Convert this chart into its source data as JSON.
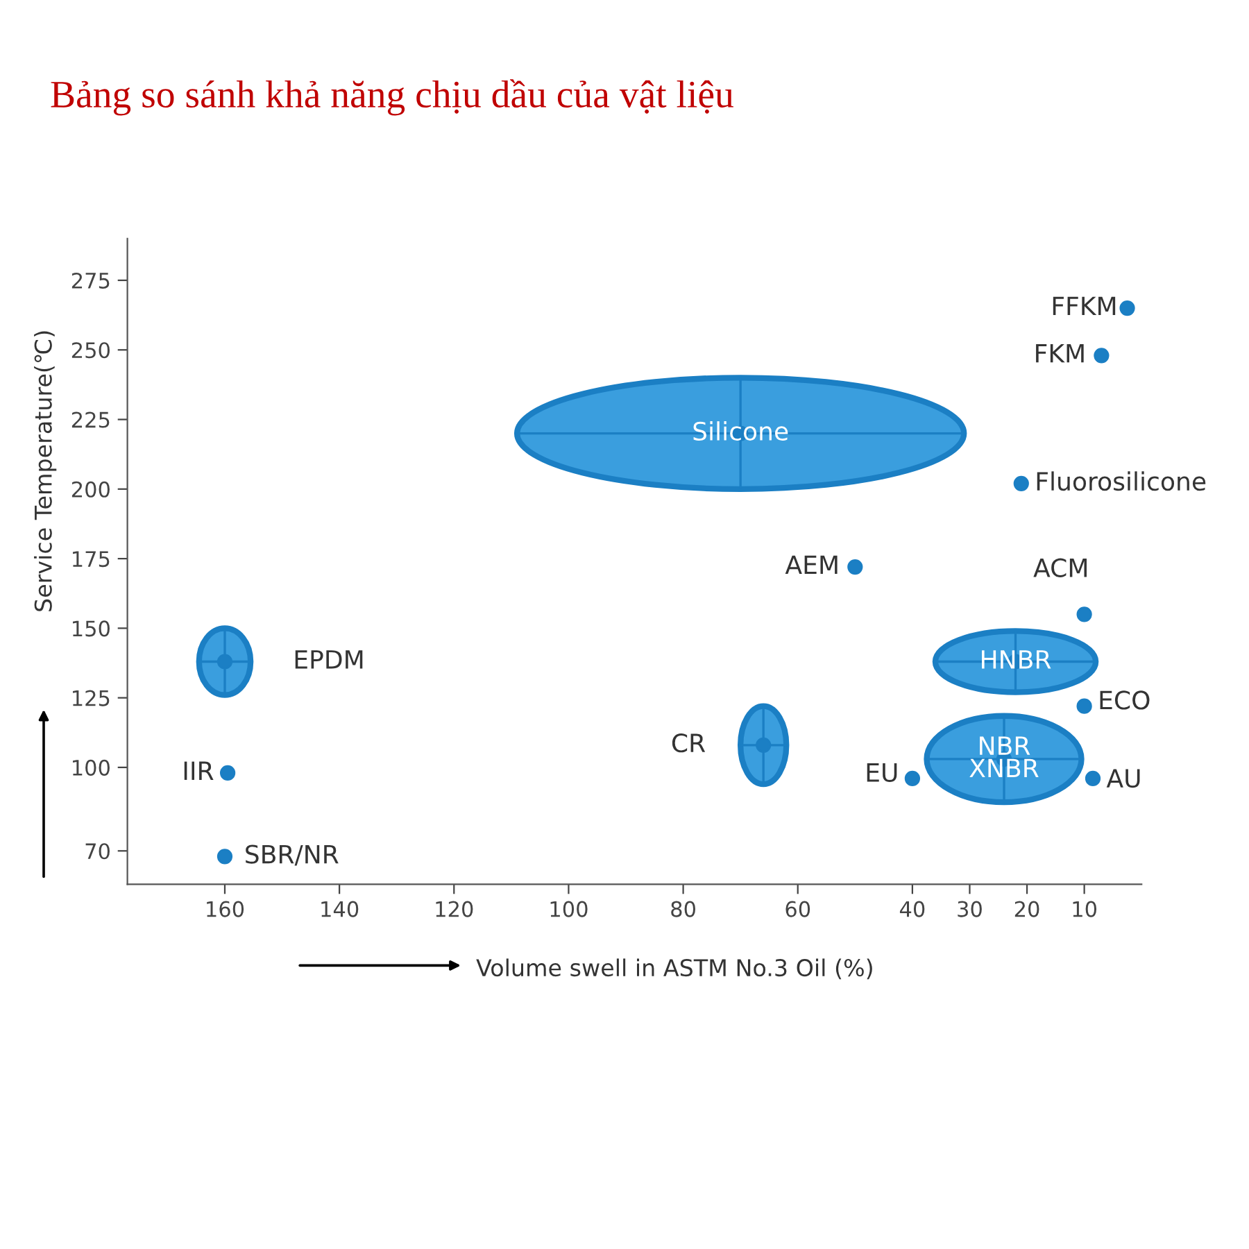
{
  "chart_data": {
    "type": "scatter",
    "title": "Bảng so sánh khả năng chịu dầu của vật liệu",
    "xlabel": "Volume swell in ASTM No.3 Oil (%)",
    "ylabel": "Service Temperature(℃)",
    "xlim": [
      177,
      0
    ],
    "ylim": [
      58,
      290
    ],
    "xticks": [
      160,
      140,
      120,
      100,
      80,
      60,
      40,
      30,
      20,
      10
    ],
    "yticks": [
      275,
      250,
      225,
      200,
      175,
      150,
      125,
      100,
      70
    ],
    "grid": false,
    "legend": false,
    "marker": "circle",
    "series": [
      {
        "name": "FFKM",
        "color": "#1b7fc4",
        "x": [
          2.5
        ],
        "values": [
          265
        ]
      },
      {
        "name": "FKM",
        "color": "#1b7fc4",
        "x": [
          7
        ],
        "values": [
          248
        ]
      },
      {
        "name": "Fluorosilicone",
        "color": "#1b7fc4",
        "x": [
          21
        ],
        "values": [
          202
        ]
      },
      {
        "name": "AEM",
        "color": "#1b7fc4",
        "x": [
          50
        ],
        "values": [
          172
        ]
      },
      {
        "name": "ACM",
        "color": "#1b7fc4",
        "x": [
          10
        ],
        "values": [
          155
        ]
      },
      {
        "name": "ECO",
        "color": "#1b7fc4",
        "x": [
          10
        ],
        "values": [
          122
        ]
      },
      {
        "name": "EU",
        "color": "#1b7fc4",
        "x": [
          40
        ],
        "values": [
          96
        ]
      },
      {
        "name": "AU",
        "color": "#1b7fc4",
        "x": [
          8.5
        ],
        "values": [
          96
        ]
      },
      {
        "name": "IIR",
        "color": "#1b7fc4",
        "x": [
          159.5
        ],
        "values": [
          98
        ]
      },
      {
        "name": "SBR/NR",
        "color": "#1b7fc4",
        "x": [
          160
        ],
        "values": [
          68
        ]
      },
      {
        "name": "Silicone",
        "color": "#1b7fc4",
        "x": [
          70
        ],
        "values": [
          220
        ],
        "xerrors": [
          39
        ],
        "errors": [
          20
        ]
      },
      {
        "name": "EPDM",
        "color": "#1b7fc4",
        "x": [
          160
        ],
        "values": [
          138
        ],
        "xerrors": [
          4.5
        ],
        "errors": [
          12
        ]
      },
      {
        "name": "HNBR",
        "color": "#1b7fc4",
        "x": [
          22
        ],
        "values": [
          138
        ],
        "xerrors": [
          14
        ],
        "errors": [
          11
        ]
      },
      {
        "name": "NBR\nXNBR",
        "color": "#1b7fc4",
        "x": [
          24
        ],
        "values": [
          103
        ],
        "xerrors": [
          13.5
        ],
        "errors": [
          15.5
        ]
      },
      {
        "name": "CR",
        "color": "#1b7fc4",
        "x": [
          66
        ],
        "values": [
          108
        ],
        "xerrors": [
          4
        ],
        "errors": [
          14
        ]
      }
    ]
  }
}
